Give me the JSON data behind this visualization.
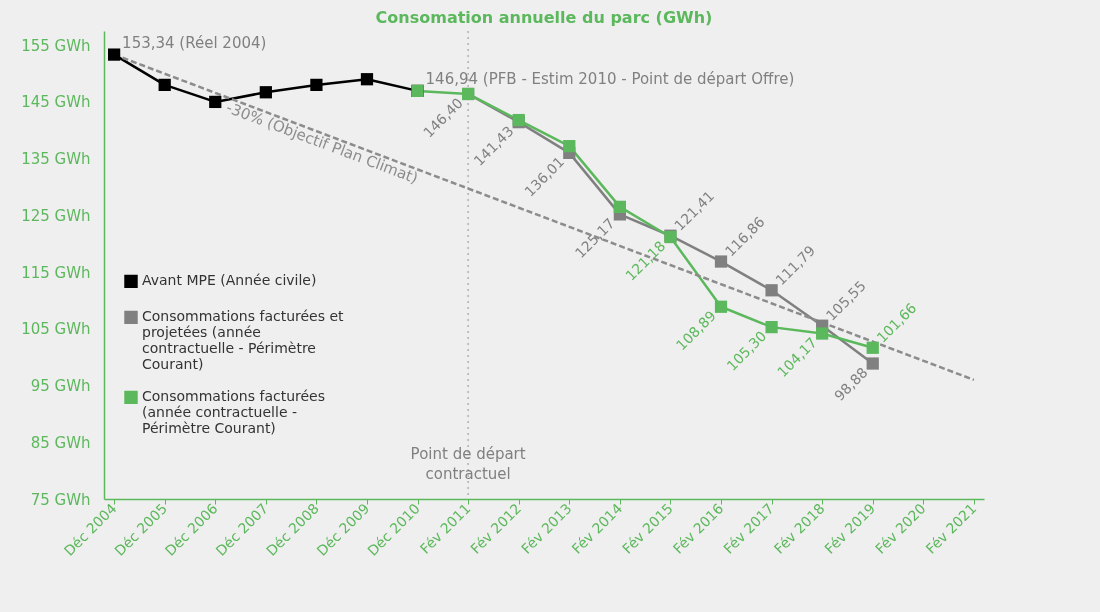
{
  "chart_data": {
    "type": "line",
    "title": "Consomation annuelle du parc (GWh)",
    "categories": [
      "Déc 2004",
      "Déc 2005",
      "Déc 2006",
      "Déc 2007",
      "Déc 2008",
      "Déc 2009",
      "Déc 2010",
      "Fév 2011",
      "Fév 2012",
      "Fév 2013",
      "Fév 2014",
      "Fév 2015",
      "Fév 2016",
      "Fév 2017",
      "Fév 2018",
      "Fév 2019",
      "Fév 2020",
      "Fév 2021"
    ],
    "ylim": [
      75,
      157.5
    ],
    "yticks": [
      {
        "value": 75,
        "label": "75 GWh"
      },
      {
        "value": 85,
        "label": "85 GWh"
      },
      {
        "value": 95,
        "label": "95 GWh"
      },
      {
        "value": 105,
        "label": "105 GWh"
      },
      {
        "value": 115,
        "label": "115 GWh"
      },
      {
        "value": 125,
        "label": "125 GWh"
      },
      {
        "value": 135,
        "label": "135 GWh"
      },
      {
        "value": 145,
        "label": "145 GWh"
      },
      {
        "value": 155,
        "label": "155 GWh"
      }
    ],
    "marker": "square",
    "legend": "left",
    "series": [
      {
        "name": "Avant MPE (Année civile)",
        "color": "#000000",
        "line_style": "solid",
        "values": [
          153.34,
          148.0,
          145.0,
          146.7,
          148.0,
          149.0,
          146.94,
          null,
          null,
          null,
          null,
          null,
          null,
          null,
          null,
          null,
          null,
          null
        ]
      },
      {
        "name": "Consommations facturées et projetées (année contractuelle - Périmètre Courant)",
        "color": "#808080",
        "line_style": "solid",
        "values": [
          null,
          null,
          null,
          null,
          null,
          null,
          null,
          146.4,
          141.43,
          136.01,
          125.17,
          121.41,
          116.86,
          111.79,
          105.55,
          98.88,
          null,
          null
        ],
        "value_labels": [
          null,
          null,
          null,
          null,
          null,
          null,
          null,
          "146,40",
          "141,43",
          "136,01",
          "125,17",
          "121,41",
          "116,86",
          "111,79",
          "105,55",
          "98,88",
          null,
          null
        ]
      },
      {
        "name": "Consommations facturées (année contractuelle - Périmètre Courant)",
        "color": "#5cb85c",
        "line_style": "solid",
        "values": [
          null,
          null,
          null,
          null,
          null,
          null,
          146.94,
          146.4,
          141.8,
          137.2,
          126.5,
          121.18,
          108.89,
          105.3,
          104.17,
          101.66,
          null,
          null
        ],
        "value_labels": [
          null,
          null,
          null,
          null,
          null,
          null,
          null,
          null,
          null,
          null,
          null,
          "121,18",
          "108,89",
          "105,30",
          "104,17",
          "101,66",
          null,
          null
        ]
      },
      {
        "type": "line",
        "name": "-30% (Objectif Plan Climat)",
        "color": "#8c8c8c",
        "line_style": "dashed",
        "marker": "none",
        "x": [
          "Déc 2004",
          "Fév 2021"
        ],
        "values": [
          153.34,
          96
        ]
      }
    ],
    "ref_lines": [
      {
        "axis": "x",
        "value": "Fév 2011",
        "label": "Point de départ contractuel",
        "color": "#b0b0b0",
        "line_style": "dotted"
      }
    ],
    "annotations": [
      {
        "text": "153,34 (Réel 2004)",
        "x": "Déc 2004",
        "y": 153.34
      },
      {
        "text": "146,94 (PFB - Estim 2010 - Point de départ Offre)",
        "x": "Déc 2010",
        "y": 146.94
      }
    ]
  }
}
